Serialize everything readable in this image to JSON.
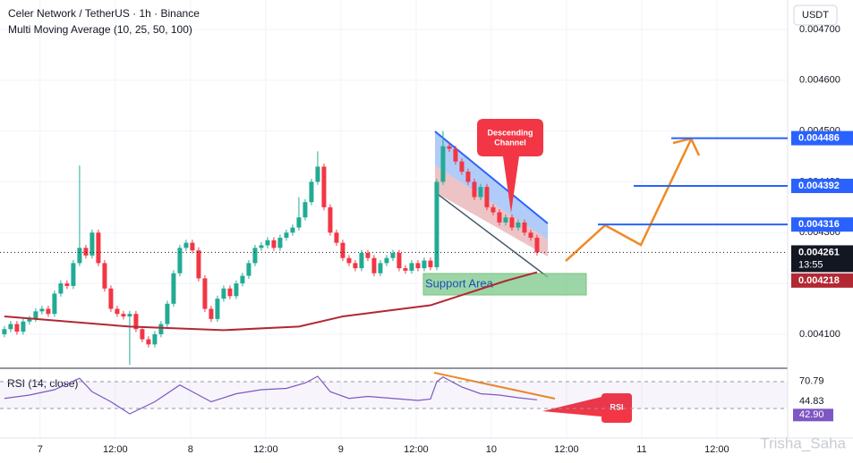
{
  "chart_data": {
    "type": "candlestick",
    "title": "Celer Network / TetherUS · 1h · Binance",
    "subtitle": "Multi Moving Average (10, 25, 50, 100)",
    "currency_button": "USDT",
    "up_color": "#22ab94",
    "down_color": "#f23645",
    "grid": true,
    "xlim": [
      -0.7,
      125
    ],
    "ylim": [
      0.004033,
      0.004758
    ],
    "yticks": [
      {
        "value": 0.0041,
        "label": "0.004100"
      },
      {
        "value": 0.0042,
        "label": "0.004200"
      },
      {
        "value": 0.0043,
        "label": "0.004300"
      },
      {
        "value": 0.0044,
        "label": "0.004400"
      },
      {
        "value": 0.0045,
        "label": "0.004500"
      },
      {
        "value": 0.0046,
        "label": "0.004600"
      },
      {
        "value": 0.0047,
        "label": "0.004700"
      }
    ],
    "xticks": [
      {
        "value": 5.7,
        "label": "7"
      },
      {
        "value": 17.7,
        "label": "12:00"
      },
      {
        "value": 29.7,
        "label": "8"
      },
      {
        "value": 41.7,
        "label": "12:00"
      },
      {
        "value": 53.7,
        "label": "9"
      },
      {
        "value": 65.7,
        "label": "12:00"
      },
      {
        "value": 77.7,
        "label": "10"
      },
      {
        "value": 89.7,
        "label": "12:00"
      },
      {
        "value": 101.7,
        "label": "11"
      },
      {
        "value": 113.7,
        "label": "12:00"
      }
    ],
    "open": [
      0.0041,
      0.00411,
      0.00412,
      0.004105,
      0.004125,
      0.00413,
      0.004145,
      0.00415,
      0.00414,
      0.00418,
      0.0042,
      0.004195,
      0.00424,
      0.00427,
      0.004255,
      0.0043,
      0.00424,
      0.00419,
      0.00415,
      0.00414,
      0.004135,
      0.00414,
      0.00411,
      0.00409,
      0.00408,
      0.0041,
      0.00412,
      0.00416,
      0.00422,
      0.00427,
      0.00428,
      0.004265,
      0.00421,
      0.00415,
      0.00413,
      0.00417,
      0.00419,
      0.004175,
      0.0042,
      0.004215,
      0.00424,
      0.00427,
      0.004275,
      0.004285,
      0.00427,
      0.00429,
      0.0043,
      0.00431,
      0.00433,
      0.00436,
      0.0044,
      0.00443,
      0.00435,
      0.0043,
      0.00428,
      0.00425,
      0.00424,
      0.00423,
      0.00426,
      0.00425,
      0.00422,
      0.00424,
      0.00425,
      0.00426,
      0.00423,
      0.004225,
      0.00424,
      0.00423,
      0.004245,
      0.004232,
      0.0044,
      0.00447,
      0.004465,
      0.00444,
      0.00442,
      0.0044,
      0.00437,
      0.00439,
      0.00435,
      0.00434,
      0.00432,
      0.00433,
      0.00431,
      0.00432,
      0.0043,
      0.00429
    ],
    "high": [
      0.004116,
      0.004126,
      0.004126,
      0.004131,
      0.004136,
      0.004151,
      0.004156,
      0.004156,
      0.004186,
      0.004206,
      0.004206,
      0.004246,
      0.004432,
      0.004276,
      0.004306,
      0.004306,
      0.004246,
      0.004196,
      0.004156,
      0.004146,
      0.004146,
      0.004146,
      0.004116,
      0.004096,
      0.004106,
      0.004126,
      0.004166,
      0.004226,
      0.004276,
      0.004286,
      0.004286,
      0.004271,
      0.004216,
      0.004156,
      0.004176,
      0.004196,
      0.004196,
      0.004206,
      0.004221,
      0.004246,
      0.004276,
      0.004281,
      0.004291,
      0.004291,
      0.004296,
      0.004306,
      0.004316,
      0.00437,
      0.004366,
      0.004406,
      0.00446,
      0.004436,
      0.004356,
      0.004306,
      0.004286,
      0.004256,
      0.004246,
      0.004266,
      0.004266,
      0.004256,
      0.004246,
      0.004256,
      0.004266,
      0.004266,
      0.004236,
      0.004246,
      0.004246,
      0.004251,
      0.004251,
      0.004406,
      0.0045,
      0.004476,
      0.004471,
      0.004446,
      0.004426,
      0.004406,
      0.004396,
      0.004396,
      0.004356,
      0.004346,
      0.004336,
      0.004336,
      0.004326,
      0.004326,
      0.004306,
      0.004296
    ],
    "low": [
      0.004094,
      0.004104,
      0.004099,
      0.004099,
      0.004119,
      0.004124,
      0.004139,
      0.004134,
      0.004134,
      0.004174,
      0.004189,
      0.004189,
      0.004234,
      0.004249,
      0.004249,
      0.004234,
      0.004184,
      0.004144,
      0.004134,
      0.004129,
      0.00404,
      0.004104,
      0.004084,
      0.004074,
      0.004074,
      0.004094,
      0.004114,
      0.004154,
      0.004214,
      0.004264,
      0.004259,
      0.004204,
      0.004144,
      0.004124,
      0.004124,
      0.004164,
      0.004169,
      0.004169,
      0.004194,
      0.004209,
      0.004234,
      0.004264,
      0.004269,
      0.004264,
      0.004264,
      0.004284,
      0.004294,
      0.004304,
      0.004324,
      0.004354,
      0.004394,
      0.004344,
      0.004294,
      0.004274,
      0.004244,
      0.004234,
      0.004224,
      0.004224,
      0.004244,
      0.004214,
      0.004214,
      0.004234,
      0.004244,
      0.004224,
      0.004219,
      0.004219,
      0.004224,
      0.004224,
      0.004226,
      0.004226,
      0.004394,
      0.004459,
      0.004434,
      0.004414,
      0.004394,
      0.004364,
      0.004364,
      0.004344,
      0.004334,
      0.004314,
      0.004314,
      0.004304,
      0.004304,
      0.004294,
      0.004284,
      0.004255
    ],
    "close": [
      0.00411,
      0.00412,
      0.004105,
      0.004125,
      0.00413,
      0.004145,
      0.00415,
      0.00414,
      0.00418,
      0.0042,
      0.004195,
      0.00424,
      0.00427,
      0.004255,
      0.0043,
      0.00424,
      0.00419,
      0.00415,
      0.00414,
      0.004135,
      0.00414,
      0.00411,
      0.00409,
      0.00408,
      0.0041,
      0.00412,
      0.00416,
      0.00422,
      0.00427,
      0.00428,
      0.004265,
      0.00421,
      0.00415,
      0.00413,
      0.00417,
      0.00419,
      0.004175,
      0.0042,
      0.004215,
      0.00424,
      0.00427,
      0.004275,
      0.004285,
      0.00427,
      0.00429,
      0.0043,
      0.00431,
      0.00433,
      0.00436,
      0.0044,
      0.00443,
      0.00435,
      0.0043,
      0.00428,
      0.00425,
      0.00424,
      0.00423,
      0.00426,
      0.00425,
      0.00422,
      0.00424,
      0.00425,
      0.00426,
      0.00423,
      0.004225,
      0.00424,
      0.00423,
      0.004245,
      0.004232,
      0.0044,
      0.00447,
      0.004465,
      0.00444,
      0.00442,
      0.0044,
      0.00437,
      0.00439,
      0.00435,
      0.00434,
      0.00432,
      0.00433,
      0.00431,
      0.00432,
      0.0043,
      0.00429,
      0.004261
    ],
    "moving_average": {
      "color": "#b22833",
      "x": [
        0,
        20,
        35,
        47,
        54,
        68,
        75,
        80,
        85
      ],
      "values": [
        0.004135,
        0.004115,
        0.004108,
        0.004115,
        0.004135,
        0.004157,
        0.004185,
        0.004205,
        0.004222
      ]
    },
    "levels": [
      0.004486,
      0.004392,
      0.004316
    ],
    "last_price": 0.004261,
    "countdown": "13:55",
    "ma_price": 0.004218,
    "descending_callout": [
      "Descending",
      "Channel"
    ],
    "support_label": "Support Area",
    "rsi": {
      "title": "RSI (14, close)",
      "color": "#7e57c2",
      "ylim": [
        -14,
        90
      ],
      "bands": [
        30,
        70
      ],
      "x": [
        0,
        4,
        8,
        12,
        14,
        17,
        20,
        24,
        28,
        30,
        33,
        37,
        41,
        45,
        48,
        50,
        52,
        55,
        58,
        62,
        66,
        68,
        69,
        70,
        73,
        76,
        79,
        82,
        85
      ],
      "values": [
        45,
        50,
        58,
        75,
        55,
        40,
        22,
        40,
        65,
        55,
        40,
        52,
        58,
        60,
        68,
        78,
        55,
        45,
        48,
        45,
        42,
        44,
        70,
        77,
        62,
        52,
        50,
        46,
        42.9
      ],
      "tags": [
        70.79,
        44.83,
        {
          "value": 42.9,
          "label": "42.90"
        }
      ],
      "callout": "RSI"
    },
    "watermark": "Trisha_Saha"
  }
}
